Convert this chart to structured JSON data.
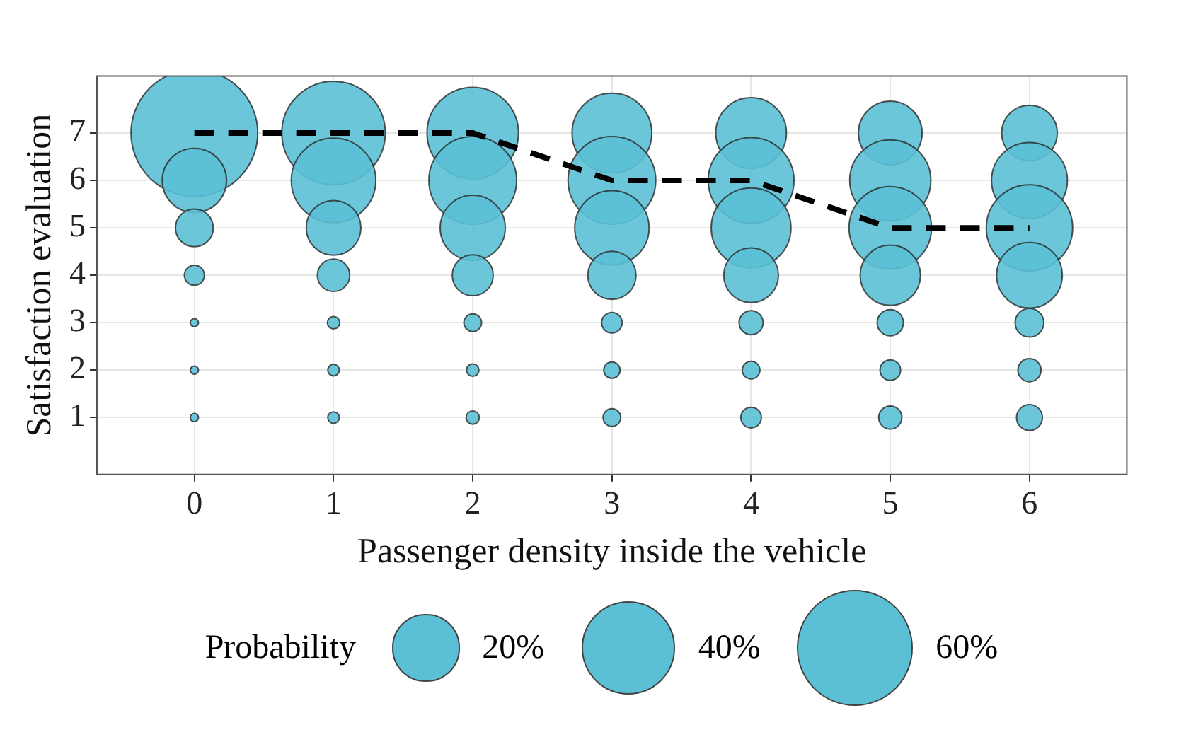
{
  "chart_data": {
    "type": "bubble",
    "xlabel": "Passenger density inside the vehicle",
    "ylabel": "Satisfaction evaluation",
    "legend_title": "Probability",
    "xlim": [
      -0.7,
      6.7
    ],
    "xticks": [
      0,
      1,
      2,
      3,
      4,
      5,
      6
    ],
    "ylim": [
      -0.2,
      8.2
    ],
    "yticks": [
      1,
      2,
      3,
      4,
      5,
      6,
      7
    ],
    "grid": true,
    "size_legend": [
      {
        "value": 20,
        "label": "20%"
      },
      {
        "value": 40,
        "label": "40%"
      },
      {
        "value": 60,
        "label": "60%"
      }
    ],
    "series": [
      {
        "color": "#5bc0d5",
        "x": [
          0,
          0,
          0,
          0,
          0,
          0,
          0,
          1,
          1,
          1,
          1,
          1,
          1,
          1,
          2,
          2,
          2,
          2,
          2,
          2,
          2,
          3,
          3,
          3,
          3,
          3,
          3,
          3,
          4,
          4,
          4,
          4,
          4,
          4,
          4,
          5,
          5,
          5,
          5,
          5,
          5,
          5,
          6,
          6,
          6,
          6,
          6,
          6,
          6
        ],
        "values": [
          7,
          6,
          5,
          4,
          3,
          2,
          1,
          7,
          6,
          5,
          4,
          3,
          2,
          1,
          7,
          6,
          5,
          4,
          3,
          2,
          1,
          7,
          6,
          5,
          4,
          3,
          2,
          1,
          7,
          6,
          5,
          4,
          3,
          2,
          1,
          7,
          6,
          5,
          4,
          3,
          2,
          1,
          7,
          6,
          5,
          4,
          3,
          2,
          1
        ],
        "sizes": [
          72,
          18.5,
          6.4,
          1.8,
          0.3,
          0.3,
          0.3,
          48,
          32,
          13.4,
          4.7,
          0.7,
          0.6,
          0.6,
          37.5,
          34.5,
          19,
          7.5,
          1.4,
          0.7,
          0.8,
          28.5,
          34.5,
          24.8,
          10.4,
          1.9,
          1.2,
          1.4,
          22.4,
          33,
          28.5,
          13.4,
          2.6,
          1.4,
          1.9,
          18.2,
          29.5,
          30.5,
          16.3,
          3.1,
          1.9,
          2.4,
          13.9,
          25.8,
          33.4,
          19.3,
          3.7,
          2.4,
          3.0
        ]
      },
      {
        "type": "line",
        "color": "#000000",
        "line_style": "dashed",
        "marker": "none",
        "x": [
          0,
          1,
          2,
          3,
          4,
          5,
          6
        ],
        "values": [
          7,
          7,
          7,
          6,
          6,
          5,
          5
        ]
      }
    ]
  }
}
